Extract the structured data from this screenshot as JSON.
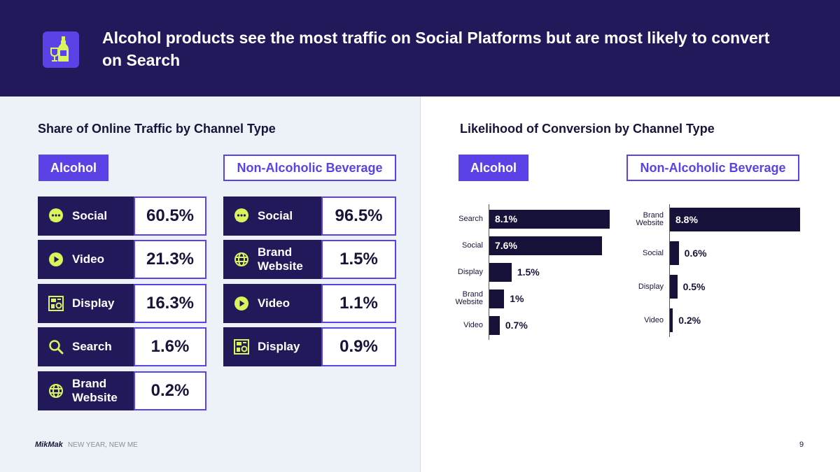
{
  "header": {
    "title": "Alcohol products see the most traffic on Social Platforms but are most likely to convert on Search",
    "icon": "wine-bottle-glass-icon"
  },
  "traffic": {
    "title": "Share of Online Traffic by Channel Type",
    "tabs": [
      "Alcohol",
      "Non-Alcoholic Beverage"
    ],
    "alcohol": [
      {
        "label": "Social",
        "value": "60.5%",
        "icon": "chat-bubble-icon"
      },
      {
        "label": "Video",
        "value": "21.3%",
        "icon": "play-icon"
      },
      {
        "label": "Display",
        "value": "16.3%",
        "icon": "display-ad-icon"
      },
      {
        "label": "Search",
        "value": "1.6%",
        "icon": "search-icon"
      },
      {
        "label": "Brand Website",
        "value": "0.2%",
        "icon": "globe-icon"
      }
    ],
    "non_alcoholic": [
      {
        "label": "Social",
        "value": "96.5%",
        "icon": "chat-bubble-icon"
      },
      {
        "label": "Brand Website",
        "value": "1.5%",
        "icon": "globe-icon"
      },
      {
        "label": "Video",
        "value": "1.1%",
        "icon": "play-icon"
      },
      {
        "label": "Display",
        "value": "0.9%",
        "icon": "display-ad-icon"
      }
    ]
  },
  "conversion": {
    "title": "Likelihood of Conversion by Channel Type",
    "tabs": [
      "Alcohol",
      "Non-Alcoholic Beverage"
    ]
  },
  "chart_data": [
    {
      "type": "bar",
      "orientation": "horizontal",
      "categories": [
        "Search",
        "Social",
        "Display",
        "Brand Website",
        "Video"
      ],
      "values": [
        8.1,
        7.6,
        1.5,
        1,
        0.7
      ],
      "labels": [
        "8.1%",
        "7.6%",
        "1.5%",
        "1%",
        "0.7%"
      ]
    },
    {
      "type": "bar",
      "orientation": "horizontal",
      "categories": [
        "Brand Website",
        "Social",
        "Display",
        "Video"
      ],
      "values": [
        8.8,
        0.6,
        0.5,
        0.2
      ],
      "labels": [
        "8.8%",
        "0.6%",
        "0.5%",
        "0.2%"
      ]
    }
  ],
  "footer": {
    "logo": "MikMak",
    "text": "NEW YEAR, NEW ME",
    "page": "9"
  },
  "colors": {
    "navy": "#22195a",
    "accent": "#5b42e6",
    "lime": "#d8f55c",
    "bar": "#17123a"
  }
}
